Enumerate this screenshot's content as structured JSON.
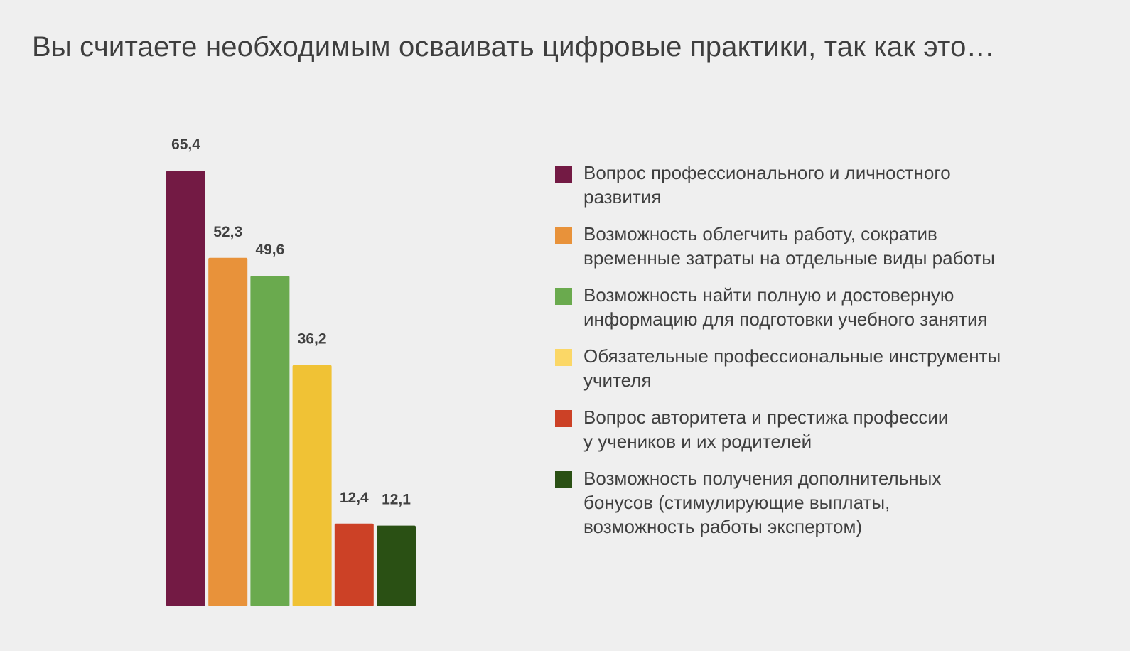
{
  "title": "Вы считаете необходимым осваивать цифровые практики, так как это…",
  "chart_data": {
    "type": "bar",
    "title": "Вы считаете необходимым осваивать цифровые практики, так как это…",
    "xlabel": "",
    "ylabel": "",
    "ylim": [
      0,
      70
    ],
    "grid": false,
    "legend_position": "right",
    "categories": [
      "Вопрос профессионального и личностного развития",
      "Возможность облегчить работу, сократив временные затраты на отдельные виды работы",
      "Возможность найти полную и достоверную информацию для подготовки учебного занятия",
      "Обязательные профессиональные инструменты учителя",
      "Вопрос авторитета и престижа профессии у учеников и их родителей",
      "Возможность получения дополнительных бонусов (стимулирующие выплаты, возможность работы экспертом)"
    ],
    "values": [
      65.4,
      52.3,
      49.6,
      36.2,
      12.4,
      12.1
    ],
    "value_labels": [
      "65,4",
      "52,3",
      "49,6",
      "36,2",
      "12,4",
      "12,1"
    ],
    "colors": [
      "#731a44",
      "#e8923a",
      "#6aaa4e",
      "#f0c235",
      "#cc4126",
      "#2a5014"
    ]
  },
  "legend": [
    {
      "lines": [
        "Вопрос профессионального и личностного",
        "развития"
      ],
      "color": "#731a44"
    },
    {
      "lines": [
        "Возможность облегчить работу, сократив",
        "временные затраты на отдельные виды работы"
      ],
      "color": "#e8923a"
    },
    {
      "lines": [
        "Возможность найти полную и достоверную",
        "информацию для подготовки учебного занятия"
      ],
      "color": "#6aaa4e"
    },
    {
      "lines": [
        "Обязательные профессиональные инструменты",
        "учителя"
      ],
      "color": "#fbd766"
    },
    {
      "lines": [
        "Вопрос авторитета и престижа профессии",
        "у учеников и их родителей"
      ],
      "color": "#cc4126"
    },
    {
      "lines": [
        "Возможность получения дополнительных",
        "бонусов (стимулирующие выплаты,",
        "возможность работы экспертом)"
      ],
      "color": "#2a5014"
    }
  ]
}
